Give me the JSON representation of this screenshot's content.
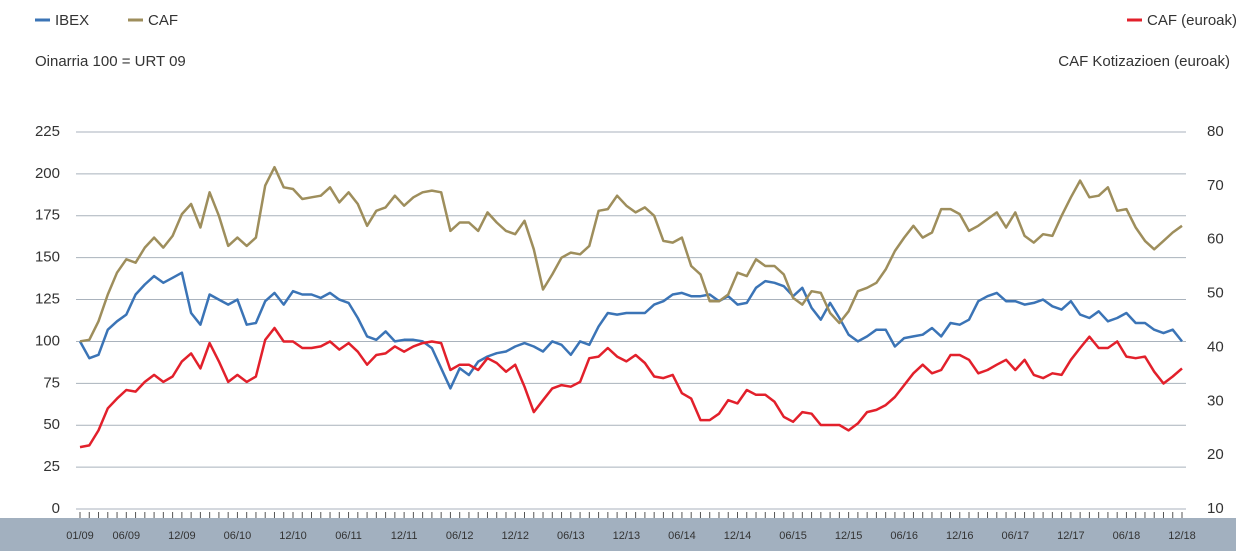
{
  "chart_data": {
    "type": "line",
    "subtitle": "Oinarria 100 = URT 09",
    "y2_label": "CAF Kotizazioen (euroak)",
    "categories": [
      "01/09",
      null,
      null,
      null,
      null,
      "06/09",
      null,
      null,
      null,
      null,
      null,
      "12/09",
      null,
      null,
      null,
      null,
      null,
      "06/10",
      null,
      null,
      null,
      null,
      null,
      "12/10",
      null,
      null,
      null,
      null,
      null,
      "06/11",
      null,
      null,
      null,
      null,
      null,
      "12/11",
      null,
      null,
      null,
      null,
      null,
      "06/12",
      null,
      null,
      null,
      null,
      null,
      "12/12",
      null,
      null,
      null,
      null,
      null,
      "06/13",
      null,
      null,
      null,
      null,
      null,
      "12/13",
      null,
      null,
      null,
      null,
      null,
      "06/14",
      null,
      null,
      null,
      null,
      null,
      "12/14",
      null,
      null,
      null,
      null,
      null,
      "06/15",
      null,
      null,
      null,
      null,
      null,
      "12/15",
      null,
      null,
      null,
      null,
      null,
      "06/16",
      null,
      null,
      null,
      null,
      null,
      "12/16",
      null,
      null,
      null,
      null,
      null,
      "06/17",
      null,
      null,
      null,
      null,
      null,
      "12/17",
      null,
      null,
      null,
      null,
      null,
      "06/18",
      null,
      null,
      null,
      null,
      null,
      "12/18"
    ],
    "series": [
      {
        "name": "IBEX",
        "color": "#3b74b6",
        "values": [
          100,
          90,
          92,
          107,
          112,
          116,
          128,
          134,
          139,
          135,
          138,
          141,
          117,
          110,
          128,
          125,
          122,
          125,
          110,
          111,
          124,
          129,
          122,
          130,
          128,
          128,
          126,
          129,
          125,
          123,
          114,
          103,
          101,
          106,
          100,
          101,
          101,
          100,
          96,
          84,
          72,
          84,
          80,
          88,
          91,
          93,
          94,
          97,
          99,
          97,
          94,
          100,
          98,
          92,
          100,
          98,
          109,
          117,
          116,
          117,
          117,
          117,
          122,
          124,
          128,
          129,
          127,
          127,
          128,
          124,
          127,
          122,
          123,
          132,
          136,
          135,
          133,
          127,
          132,
          120,
          113,
          123,
          114,
          104,
          100,
          103,
          107,
          107,
          97,
          102,
          103,
          104,
          108,
          103,
          111,
          110,
          113,
          124,
          127,
          129,
          124,
          124,
          122,
          123,
          125,
          121,
          119,
          124,
          116,
          114,
          118,
          112,
          114,
          117,
          111,
          111,
          107,
          105,
          107,
          100
        ]
      },
      {
        "name": "CAF",
        "color": "#9e8e5c",
        "values": [
          100,
          101,
          112,
          128,
          141,
          149,
          147,
          156,
          162,
          156,
          163,
          176,
          182,
          168,
          189,
          175,
          157,
          162,
          157,
          162,
          193,
          204,
          192,
          191,
          185,
          186,
          187,
          192,
          183,
          189,
          182,
          169,
          178,
          180,
          187,
          181,
          186,
          189,
          190,
          189,
          166,
          171,
          171,
          166,
          177,
          171,
          166,
          164,
          172,
          155,
          131,
          140,
          150,
          153,
          152,
          157,
          178,
          179,
          187,
          181,
          177,
          180,
          175,
          160,
          159,
          162,
          145,
          140,
          124,
          124,
          128,
          141,
          139,
          149,
          145,
          145,
          140,
          126,
          122,
          130,
          129,
          117,
          111,
          118,
          130,
          132,
          135,
          143,
          154,
          162,
          169,
          162,
          165,
          179,
          179,
          176,
          166,
          169,
          173,
          177,
          168,
          177,
          163,
          159,
          164,
          163,
          175,
          186,
          196,
          186,
          187,
          192,
          178,
          179,
          168,
          160,
          155,
          160,
          165,
          169
        ]
      },
      {
        "name": "CAF (euroak)",
        "color": "#e2202b",
        "axis": "y2",
        "values": [
          21.5,
          21.8,
          24.6,
          28.7,
          30.5,
          32.1,
          31.8,
          33.6,
          34.9,
          33.6,
          34.6,
          37.4,
          38.9,
          36.1,
          40.8,
          37.4,
          33.6,
          34.9,
          33.6,
          34.6,
          41.4,
          43.6,
          41.1,
          41.1,
          39.9,
          39.9,
          40.2,
          41.1,
          39.6,
          40.8,
          39.2,
          36.8,
          38.6,
          38.9,
          40.2,
          39.2,
          40.2,
          40.8,
          41.1,
          40.8,
          35.8,
          36.8,
          36.8,
          35.8,
          38.0,
          37.1,
          35.5,
          36.8,
          32.7,
          28.0,
          30.2,
          32.4,
          33.0,
          32.7,
          33.6,
          38.0,
          38.3,
          39.9,
          38.3,
          37.4,
          38.6,
          37.1,
          34.6,
          34.3,
          34.9,
          31.5,
          30.5,
          26.5,
          26.5,
          27.7,
          30.2,
          29.6,
          32.1,
          31.2,
          31.2,
          29.9,
          27.1,
          26.2,
          28.0,
          27.7,
          25.6,
          25.6,
          25.6,
          24.6,
          25.9,
          28.0,
          28.4,
          29.3,
          30.8,
          33.0,
          35.2,
          36.8,
          35.2,
          35.8,
          38.6,
          38.6,
          37.7,
          35.2,
          35.8,
          36.8,
          37.7,
          35.8,
          37.7,
          34.9,
          34.3,
          35.2,
          34.9,
          37.7,
          39.9,
          42.0,
          39.9,
          39.9,
          41.1,
          38.3,
          38.0,
          38.3,
          35.5,
          33.3,
          34.6,
          36.1
        ]
      }
    ],
    "ylim": [
      0,
      225
    ],
    "yticks": [
      0,
      25,
      50,
      75,
      100,
      125,
      150,
      175,
      200,
      225
    ],
    "y2lim": [
      10,
      80
    ],
    "y2ticks": [
      10,
      20,
      30,
      40,
      50,
      60,
      70,
      80
    ],
    "grid": true
  }
}
